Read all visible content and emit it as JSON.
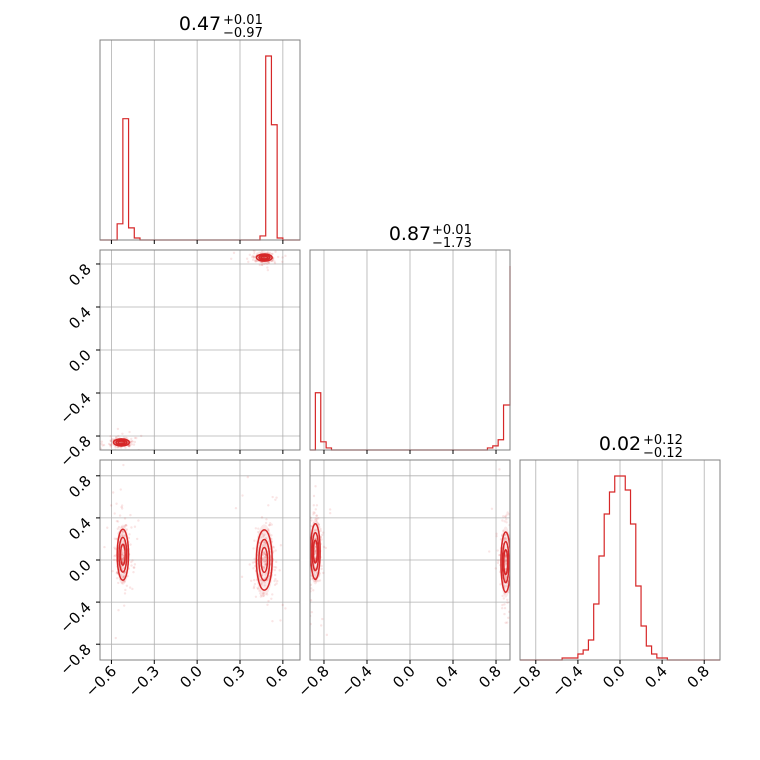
{
  "chart_data": {
    "type": "corner",
    "color": "#d62728",
    "grid": true,
    "titles": [
      {
        "value": "0.47",
        "plus": "+0.01",
        "minus": "−0.97"
      },
      {
        "value": "0.87",
        "plus": "+0.01",
        "minus": "−1.73"
      },
      {
        "value": "0.02",
        "plus": "+0.12",
        "minus": "−0.12"
      }
    ],
    "params": [
      {
        "range": [
          -0.68,
          0.72
        ],
        "ticks": [
          -0.6,
          -0.3,
          0.0,
          0.3,
          0.6
        ],
        "tick_labels": [
          "−0.6",
          "−0.3",
          "0.0",
          "0.3",
          "0.6"
        ]
      },
      {
        "range": [
          -0.93,
          0.93
        ],
        "ticks": [
          -0.8,
          -0.4,
          0.0,
          0.4,
          0.8
        ],
        "tick_labels": [
          "−0.8",
          "−0.4",
          "0.0",
          "0.4",
          "0.8"
        ]
      },
      {
        "range": [
          -0.95,
          0.95
        ],
        "ticks": [
          -0.8,
          -0.4,
          0.0,
          0.4,
          0.8
        ],
        "tick_labels": [
          "−0.8",
          "−0.4",
          "0.0",
          "0.4",
          "0.8"
        ]
      }
    ],
    "histograms": [
      {
        "bin_edges": [
          -0.68,
          -0.64,
          -0.6,
          -0.56,
          -0.52,
          -0.48,
          -0.44,
          -0.4,
          -0.36,
          -0.32,
          -0.28,
          -0.24,
          -0.2,
          -0.16,
          -0.12,
          -0.08,
          -0.04,
          0.0,
          0.04,
          0.08,
          0.12,
          0.16,
          0.2,
          0.24,
          0.28,
          0.32,
          0.36,
          0.4,
          0.44,
          0.48,
          0.52,
          0.56,
          0.6,
          0.64,
          0.68,
          0.72
        ],
        "counts": [
          0,
          0,
          0,
          8,
          60,
          6,
          1,
          0,
          0,
          0,
          0,
          0,
          0,
          0,
          0,
          0,
          0,
          0,
          0,
          0,
          0,
          0,
          0,
          0,
          0,
          0,
          0,
          0,
          2,
          91,
          57,
          1,
          0,
          0,
          0
        ]
      },
      {
        "bin_edges": [
          -0.93,
          -0.88,
          -0.83,
          -0.78,
          -0.73,
          -0.68,
          -0.63,
          -0.58,
          -0.53,
          -0.48,
          -0.43,
          -0.38,
          -0.33,
          -0.28,
          -0.23,
          -0.18,
          -0.13,
          -0.08,
          -0.03,
          0.02,
          0.07,
          0.12,
          0.17,
          0.22,
          0.27,
          0.32,
          0.37,
          0.42,
          0.47,
          0.52,
          0.57,
          0.62,
          0.67,
          0.72,
          0.77,
          0.82,
          0.87,
          0.93
        ],
        "counts": [
          0,
          28,
          4,
          1,
          0,
          0,
          0,
          0,
          0,
          0,
          0,
          0,
          0,
          0,
          0,
          0,
          0,
          0,
          0,
          0,
          0,
          0,
          0,
          0,
          0,
          0,
          0,
          0,
          0,
          0,
          0,
          0,
          0,
          1,
          2,
          5,
          22,
          90
        ]
      },
      {
        "bin_edges": [
          -0.95,
          -0.9,
          -0.85,
          -0.8,
          -0.75,
          -0.7,
          -0.65,
          -0.6,
          -0.55,
          -0.5,
          -0.45,
          -0.4,
          -0.35,
          -0.3,
          -0.25,
          -0.2,
          -0.15,
          -0.1,
          -0.05,
          0.0,
          0.05,
          0.1,
          0.15,
          0.2,
          0.25,
          0.3,
          0.35,
          0.4,
          0.45,
          0.5,
          0.55,
          0.6,
          0.65,
          0.7,
          0.75,
          0.8,
          0.85,
          0.95
        ],
        "counts": [
          0,
          0,
          0,
          0,
          0,
          0,
          0,
          0,
          1,
          1,
          1,
          3,
          5,
          10,
          28,
          52,
          73,
          84,
          92,
          92,
          85,
          68,
          37,
          17,
          7,
          3,
          1,
          1,
          0,
          0,
          0,
          0,
          0,
          0,
          0,
          0,
          0
        ]
      }
    ],
    "modes": {
      "x0_y1": [
        {
          "cx": -0.53,
          "cy": -0.86,
          "sx": 0.025,
          "sy": 0.015
        },
        {
          "cx": 0.47,
          "cy": 0.86,
          "sx": 0.025,
          "sy": 0.015
        }
      ],
      "x0_y2": [
        {
          "cx": -0.52,
          "cy": 0.05,
          "sx": 0.018,
          "sy": 0.11
        },
        {
          "cx": 0.47,
          "cy": 0.0,
          "sx": 0.025,
          "sy": 0.13
        }
      ],
      "x1_y2": [
        {
          "cx": -0.88,
          "cy": 0.08,
          "sx": 0.02,
          "sy": 0.12
        },
        {
          "cx": 0.89,
          "cy": -0.02,
          "sx": 0.02,
          "sy": 0.13
        }
      ]
    }
  }
}
